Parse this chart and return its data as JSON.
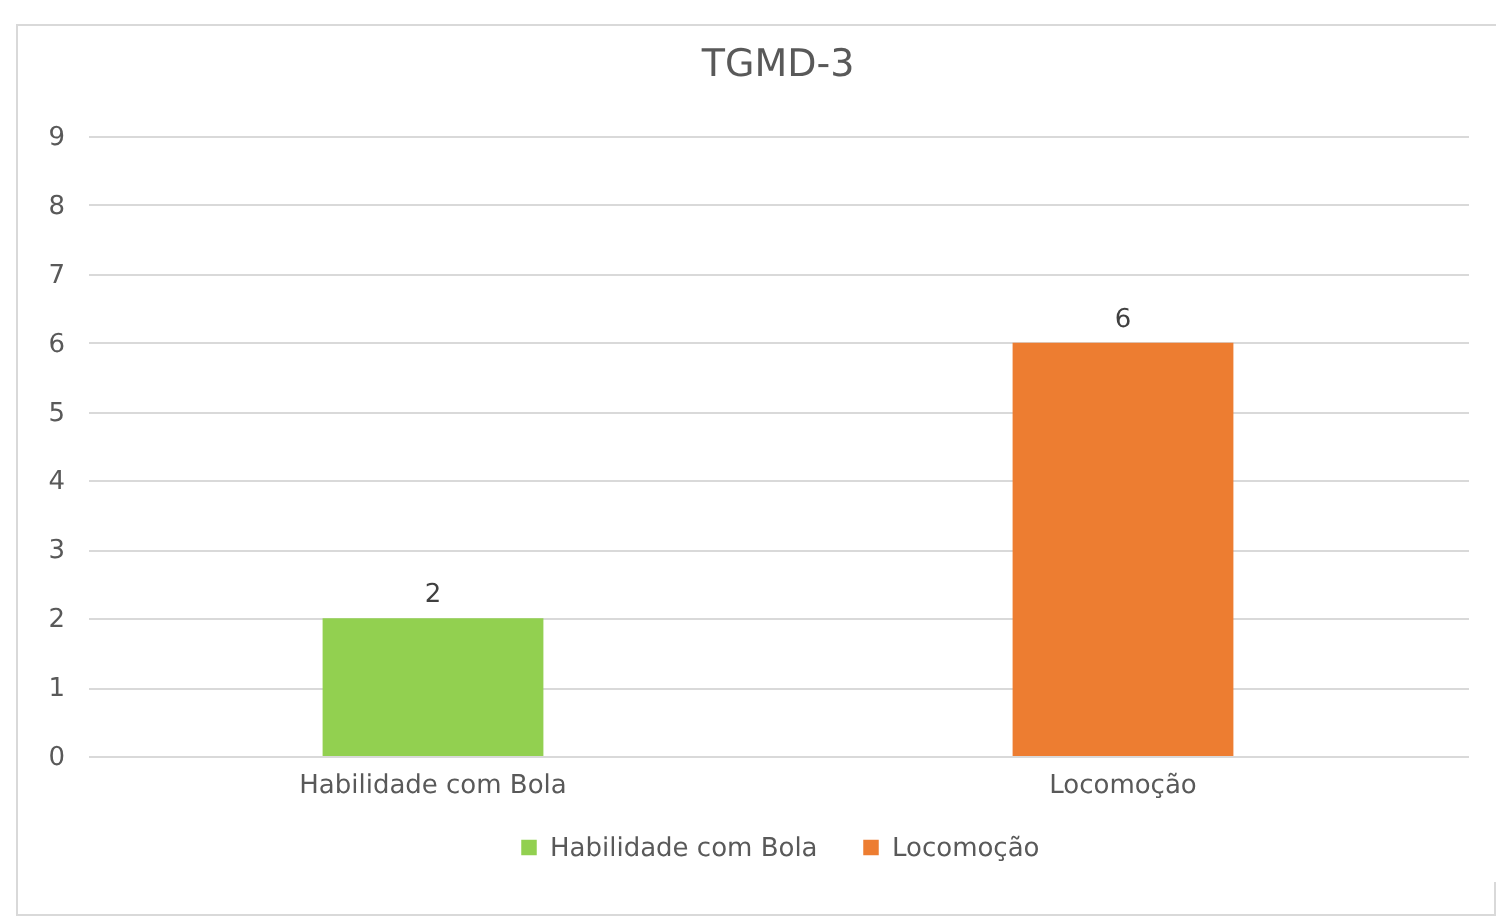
{
  "chart_data": {
    "type": "bar",
    "title": "TGMD-3",
    "categories": [
      "Habilidade com Bola",
      "Locomoção"
    ],
    "series": [
      {
        "name": "Habilidade com Bola",
        "color": "#92d050",
        "values": [
          2,
          null
        ]
      },
      {
        "name": "Locomoção",
        "color": "#ed7d31",
        "values": [
          null,
          6
        ]
      }
    ],
    "ylim": [
      0,
      9
    ],
    "yticks": [
      0,
      1,
      2,
      3,
      4,
      5,
      6,
      7,
      8,
      9
    ],
    "grid": "y",
    "legend": "bottom",
    "data_labels": true
  }
}
